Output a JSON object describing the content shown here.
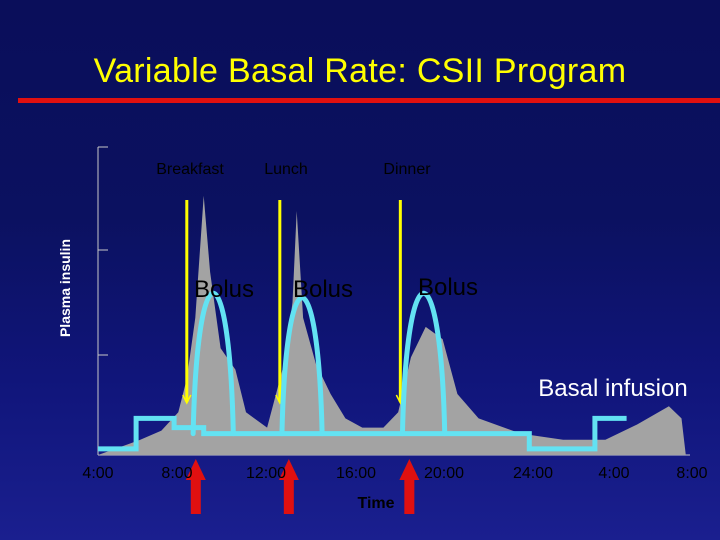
{
  "chart_data": {
    "type": "area",
    "title": "Variable Basal Rate: CSII Program",
    "xlabel": "Time",
    "ylabel": "Plasma insulin",
    "x_ticks": [
      "4:00",
      "8:00",
      "12:00",
      "16:00",
      "20:00",
      "24:00",
      "4:00",
      "8:00"
    ],
    "xlim": [
      4,
      32
    ],
    "meals": [
      {
        "label": "Breakfast",
        "time": 8.2
      },
      {
        "label": "Lunch",
        "time": 12.6
      },
      {
        "label": "Dinner",
        "time": 18.3
      }
    ],
    "bolus_labels": [
      "Bolus",
      "Bolus",
      "Bolus"
    ],
    "basal_label": "Basal infusion",
    "plasma_insulin": [
      {
        "x": 4.0,
        "y": 0.0
      },
      {
        "x": 6.0,
        "y": 0.05
      },
      {
        "x": 7.0,
        "y": 0.08
      },
      {
        "x": 7.8,
        "y": 0.14
      },
      {
        "x": 8.2,
        "y": 0.25
      },
      {
        "x": 8.6,
        "y": 0.45
      },
      {
        "x": 8.9,
        "y": 0.75
      },
      {
        "x": 9.0,
        "y": 0.85
      },
      {
        "x": 9.3,
        "y": 0.6
      },
      {
        "x": 9.8,
        "y": 0.35
      },
      {
        "x": 10.5,
        "y": 0.28
      },
      {
        "x": 11.0,
        "y": 0.14
      },
      {
        "x": 12.0,
        "y": 0.09
      },
      {
        "x": 12.8,
        "y": 0.3
      },
      {
        "x": 13.2,
        "y": 0.5
      },
      {
        "x": 13.4,
        "y": 0.8
      },
      {
        "x": 13.7,
        "y": 0.45
      },
      {
        "x": 14.3,
        "y": 0.3
      },
      {
        "x": 15.0,
        "y": 0.2
      },
      {
        "x": 15.7,
        "y": 0.12
      },
      {
        "x": 16.5,
        "y": 0.09
      },
      {
        "x": 17.5,
        "y": 0.09
      },
      {
        "x": 18.2,
        "y": 0.14
      },
      {
        "x": 18.8,
        "y": 0.32
      },
      {
        "x": 19.5,
        "y": 0.42
      },
      {
        "x": 20.3,
        "y": 0.38
      },
      {
        "x": 21.0,
        "y": 0.2
      },
      {
        "x": 22.0,
        "y": 0.12
      },
      {
        "x": 24.0,
        "y": 0.07
      },
      {
        "x": 26.0,
        "y": 0.05
      },
      {
        "x": 28.0,
        "y": 0.05
      },
      {
        "x": 29.5,
        "y": 0.1
      },
      {
        "x": 31.0,
        "y": 0.16
      },
      {
        "x": 31.6,
        "y": 0.12
      },
      {
        "x": 31.8,
        "y": 0.0
      }
    ],
    "basal_rate": [
      {
        "x": 4.0,
        "y": 0.02
      },
      {
        "x": 5.8,
        "y": 0.02
      },
      {
        "x": 5.8,
        "y": 0.12
      },
      {
        "x": 7.6,
        "y": 0.12
      },
      {
        "x": 7.6,
        "y": 0.09
      },
      {
        "x": 9.0,
        "y": 0.09
      },
      {
        "x": 9.0,
        "y": 0.07
      },
      {
        "x": 24.4,
        "y": 0.07
      },
      {
        "x": 24.4,
        "y": 0.02
      },
      {
        "x": 27.5,
        "y": 0.02
      },
      {
        "x": 27.5,
        "y": 0.12
      },
      {
        "x": 29.0,
        "y": 0.12
      }
    ],
    "boluses": [
      {
        "start": 8.5,
        "end": 10.4,
        "peak": 0.52
      },
      {
        "start": 12.7,
        "end": 14.6,
        "peak": 0.5
      },
      {
        "start": 18.4,
        "end": 20.4,
        "peak": 0.52
      }
    ],
    "ylim": [
      0,
      1
    ],
    "colors": {
      "plasma_fill": "#a3a3a3",
      "basal_line": "#63e2f2",
      "meal_line": "#ffff00",
      "arrow": "#e01010",
      "axis": "#c8c8c8",
      "text_dark": "#000000",
      "text_light": "#ffffff",
      "title": "#ffff00"
    }
  }
}
